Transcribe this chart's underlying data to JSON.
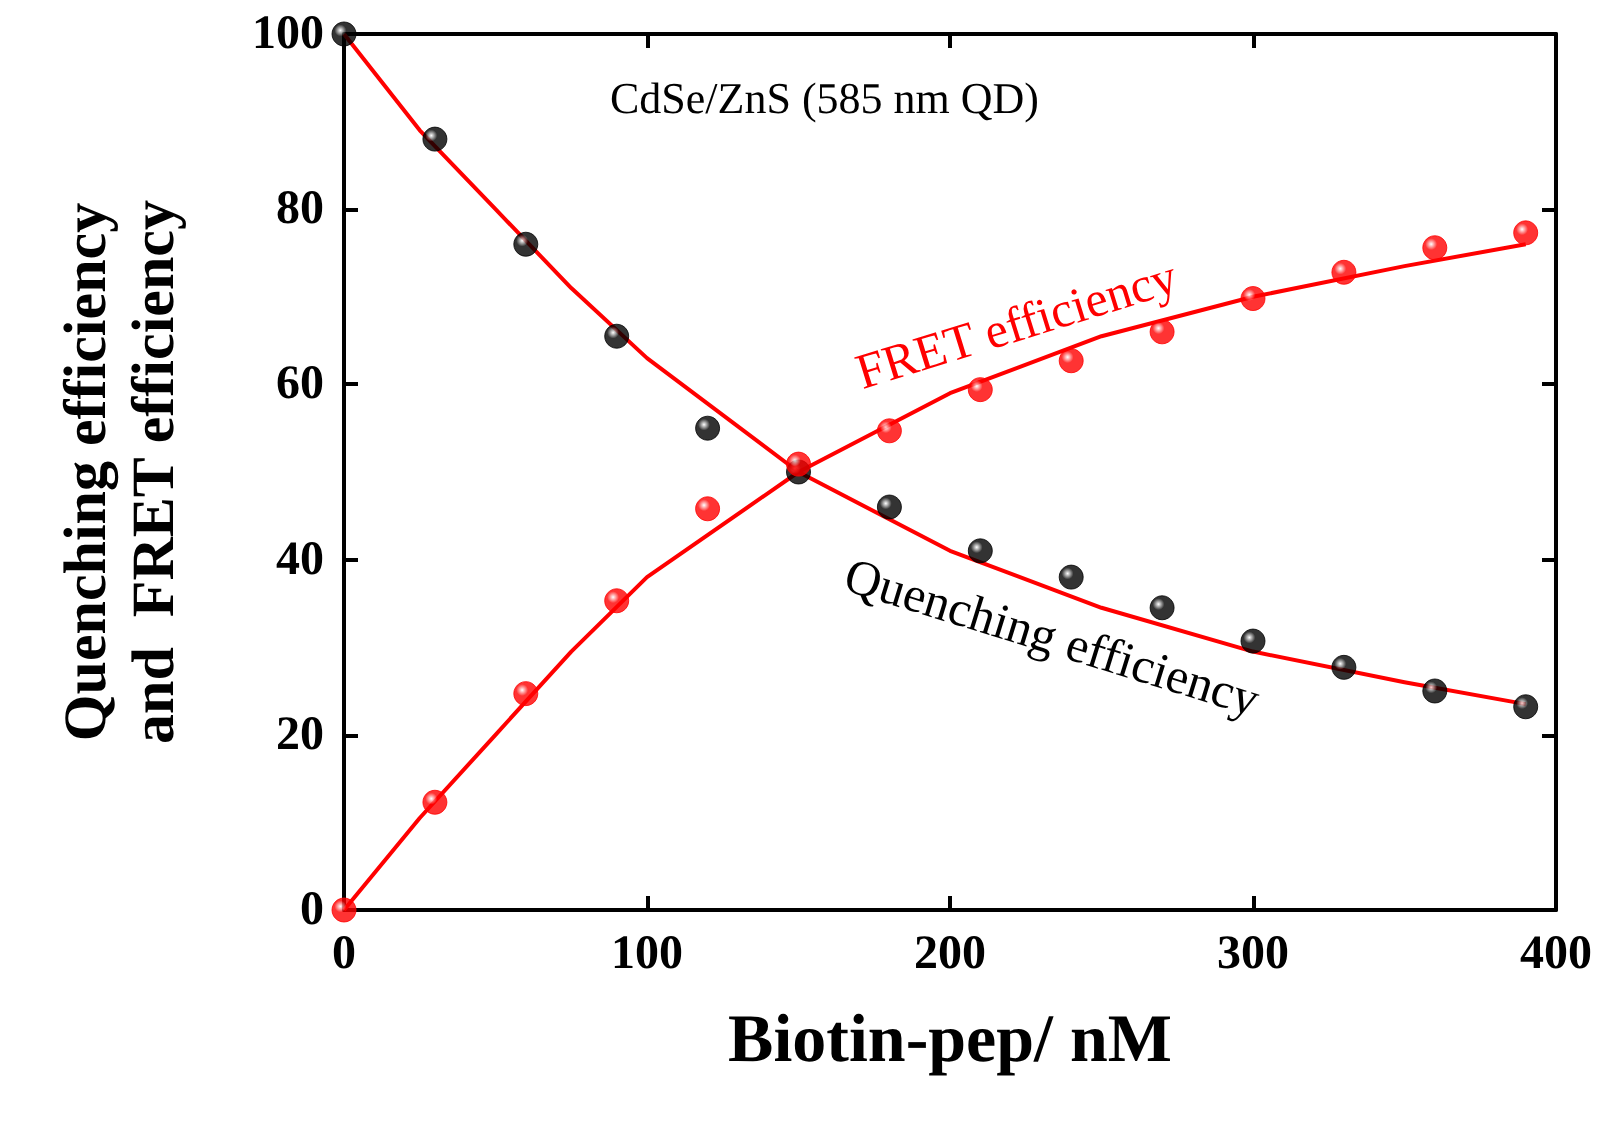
{
  "chart_data": {
    "type": "scatter",
    "xlabel": "Biotin-pep/ nM",
    "ylabel": "Quenching efficiency\nand  FRET efficiency",
    "annotations": [
      "CdSe/ZnS (585 nm QD)"
    ],
    "series": [
      {
        "name": "Quenching efficiency",
        "color": "#000000",
        "marker": "circle",
        "x": [
          0,
          30,
          60,
          90,
          120,
          150,
          180,
          210,
          240,
          270,
          300,
          330,
          360,
          390
        ],
        "values": [
          100,
          88,
          76,
          65.5,
          55,
          50,
          46,
          41,
          38,
          34.5,
          30.7,
          27.7,
          25,
          23.2
        ]
      },
      {
        "name": "FRET efficiency",
        "color": "#ff0000",
        "marker": "circle",
        "x": [
          0,
          30,
          60,
          90,
          120,
          150,
          180,
          210,
          240,
          270,
          300,
          330,
          360,
          390
        ],
        "values": [
          0,
          12.3,
          24.7,
          35.3,
          45.8,
          50.9,
          54.7,
          59.4,
          62.7,
          66,
          69.8,
          72.8,
          75.6,
          77.3
        ]
      },
      {
        "type": "line",
        "color": "#ff0000",
        "marker": "none",
        "x": [
          0,
          25,
          50,
          75,
          100,
          150,
          200,
          250,
          300,
          350,
          390
        ],
        "values": [
          100,
          89,
          80,
          71,
          63,
          50,
          41,
          34.5,
          29.5,
          26,
          23.5
        ]
      },
      {
        "type": "line",
        "color": "#ff0000",
        "marker": "none",
        "x": [
          0,
          25,
          50,
          75,
          100,
          150,
          200,
          250,
          300,
          350,
          390
        ],
        "values": [
          0,
          10.5,
          20,
          29.5,
          38,
          50,
          59,
          65.5,
          70,
          73.5,
          76
        ]
      }
    ],
    "xlim": [
      0,
      400
    ],
    "xticks": [
      0,
      100,
      200,
      300,
      400
    ],
    "ylim": [
      0,
      100
    ],
    "yticks": [
      0,
      20,
      40,
      60,
      80,
      100
    ],
    "grid": false,
    "legend": false
  }
}
